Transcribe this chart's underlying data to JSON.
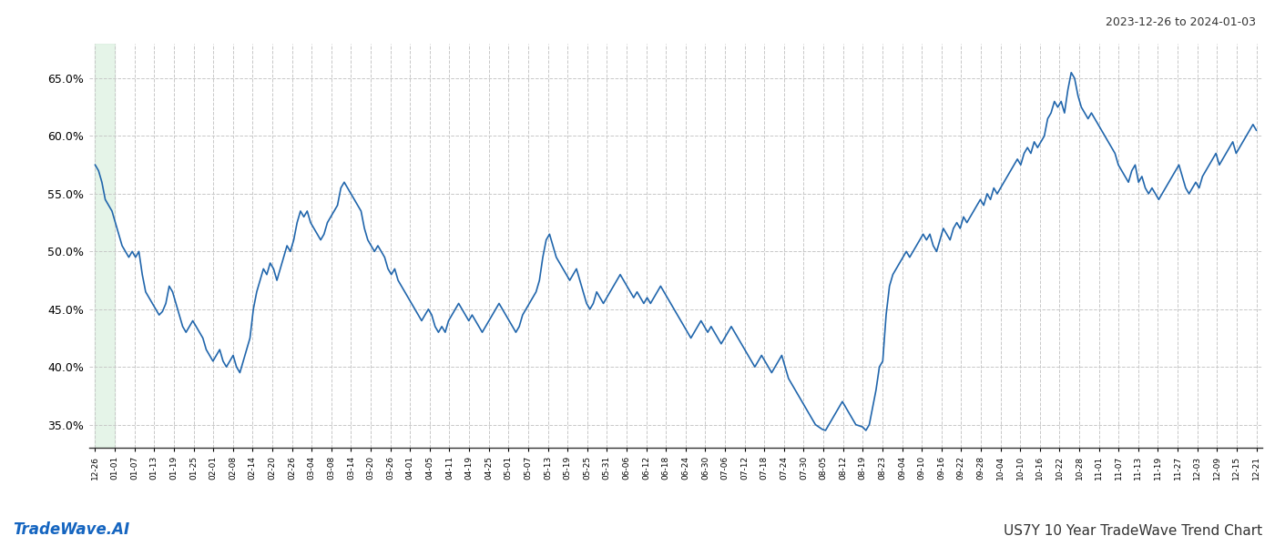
{
  "title_date_range": "2023-12-26 to 2024-01-03",
  "footer_left": "TradeWave.AI",
  "footer_right": "US7Y 10 Year TradeWave Trend Chart",
  "line_color": "#2166ac",
  "line_width": 1.2,
  "background_color": "#ffffff",
  "grid_color": "#c8c8c8",
  "highlight_color": "#d4edda",
  "highlight_alpha": 0.6,
  "ylim": [
    33.0,
    68.0
  ],
  "yticks": [
    35.0,
    40.0,
    45.0,
    50.0,
    55.0,
    60.0,
    65.0
  ],
  "x_labels": [
    "12-26",
    "01-01",
    "01-07",
    "01-13",
    "01-19",
    "01-25",
    "02-01",
    "02-08",
    "02-14",
    "02-20",
    "02-26",
    "03-04",
    "03-08",
    "03-14",
    "03-20",
    "03-26",
    "04-01",
    "04-05",
    "04-11",
    "04-19",
    "04-25",
    "05-01",
    "05-07",
    "05-13",
    "05-19",
    "05-25",
    "05-31",
    "06-06",
    "06-12",
    "06-18",
    "06-24",
    "06-30",
    "07-06",
    "07-12",
    "07-18",
    "07-24",
    "07-30",
    "08-05",
    "08-12",
    "08-19",
    "08-23",
    "09-04",
    "09-10",
    "09-16",
    "09-22",
    "09-28",
    "10-04",
    "10-10",
    "10-16",
    "10-22",
    "10-28",
    "11-01",
    "11-07",
    "11-13",
    "11-19",
    "11-27",
    "12-03",
    "12-09",
    "12-15",
    "12-21"
  ],
  "highlight_xstart": 0,
  "highlight_xend": 1,
  "values": [
    57.5,
    57.0,
    56.0,
    54.5,
    54.0,
    53.5,
    52.5,
    51.5,
    50.5,
    50.0,
    49.5,
    50.0,
    49.5,
    50.0,
    48.0,
    46.5,
    46.0,
    45.5,
    45.0,
    44.5,
    44.8,
    45.5,
    47.0,
    46.5,
    45.5,
    44.5,
    43.5,
    43.0,
    43.5,
    44.0,
    43.5,
    43.0,
    42.5,
    41.5,
    41.0,
    40.5,
    41.0,
    41.5,
    40.5,
    40.0,
    40.5,
    41.0,
    40.0,
    39.5,
    40.5,
    41.5,
    42.5,
    45.0,
    46.5,
    47.5,
    48.5,
    48.0,
    49.0,
    48.5,
    47.5,
    48.5,
    49.5,
    50.5,
    50.0,
    51.0,
    52.5,
    53.5,
    53.0,
    53.5,
    52.5,
    52.0,
    51.5,
    51.0,
    51.5,
    52.5,
    53.0,
    53.5,
    54.0,
    55.5,
    56.0,
    55.5,
    55.0,
    54.5,
    54.0,
    53.5,
    52.0,
    51.0,
    50.5,
    50.0,
    50.5,
    50.0,
    49.5,
    48.5,
    48.0,
    48.5,
    47.5,
    47.0,
    46.5,
    46.0,
    45.5,
    45.0,
    44.5,
    44.0,
    44.5,
    45.0,
    44.5,
    43.5,
    43.0,
    43.5,
    43.0,
    44.0,
    44.5,
    45.0,
    45.5,
    45.0,
    44.5,
    44.0,
    44.5,
    44.0,
    43.5,
    43.0,
    43.5,
    44.0,
    44.5,
    45.0,
    45.5,
    45.0,
    44.5,
    44.0,
    43.5,
    43.0,
    43.5,
    44.5,
    45.0,
    45.5,
    46.0,
    46.5,
    47.5,
    49.5,
    51.0,
    51.5,
    50.5,
    49.5,
    49.0,
    48.5,
    48.0,
    47.5,
    48.0,
    48.5,
    47.5,
    46.5,
    45.5,
    45.0,
    45.5,
    46.5,
    46.0,
    45.5,
    46.0,
    46.5,
    47.0,
    47.5,
    48.0,
    47.5,
    47.0,
    46.5,
    46.0,
    46.5,
    46.0,
    45.5,
    46.0,
    45.5,
    46.0,
    46.5,
    47.0,
    46.5,
    46.0,
    45.5,
    45.0,
    44.5,
    44.0,
    43.5,
    43.0,
    42.5,
    43.0,
    43.5,
    44.0,
    43.5,
    43.0,
    43.5,
    43.0,
    42.5,
    42.0,
    42.5,
    43.0,
    43.5,
    43.0,
    42.5,
    42.0,
    41.5,
    41.0,
    40.5,
    40.0,
    40.5,
    41.0,
    40.5,
    40.0,
    39.5,
    40.0,
    40.5,
    41.0,
    40.0,
    39.0,
    38.5,
    38.0,
    37.5,
    37.0,
    36.5,
    36.0,
    35.5,
    35.0,
    34.8,
    34.6,
    34.5,
    35.0,
    35.5,
    36.0,
    36.5,
    37.0,
    36.5,
    36.0,
    35.5,
    35.0,
    34.9,
    34.8,
    34.5,
    35.0,
    36.5,
    38.0,
    40.0,
    40.5,
    44.5,
    47.0,
    48.0,
    48.5,
    49.0,
    49.5,
    50.0,
    49.5,
    50.0,
    50.5,
    51.0,
    51.5,
    51.0,
    51.5,
    50.5,
    50.0,
    51.0,
    52.0,
    51.5,
    51.0,
    52.0,
    52.5,
    52.0,
    53.0,
    52.5,
    53.0,
    53.5,
    54.0,
    54.5,
    54.0,
    55.0,
    54.5,
    55.5,
    55.0,
    55.5,
    56.0,
    56.5,
    57.0,
    57.5,
    58.0,
    57.5,
    58.5,
    59.0,
    58.5,
    59.5,
    59.0,
    59.5,
    60.0,
    61.5,
    62.0,
    63.0,
    62.5,
    63.0,
    62.0,
    64.0,
    65.5,
    65.0,
    63.5,
    62.5,
    62.0,
    61.5,
    62.0,
    61.5,
    61.0,
    60.5,
    60.0,
    59.5,
    59.0,
    58.5,
    57.5,
    57.0,
    56.5,
    56.0,
    57.0,
    57.5,
    56.0,
    56.5,
    55.5,
    55.0,
    55.5,
    55.0,
    54.5,
    55.0,
    55.5,
    56.0,
    56.5,
    57.0,
    57.5,
    56.5,
    55.5,
    55.0,
    55.5,
    56.0,
    55.5,
    56.5,
    57.0,
    57.5,
    58.0,
    58.5,
    57.5,
    58.0,
    58.5,
    59.0,
    59.5,
    58.5,
    59.0,
    59.5,
    60.0,
    60.5,
    61.0,
    60.5
  ]
}
